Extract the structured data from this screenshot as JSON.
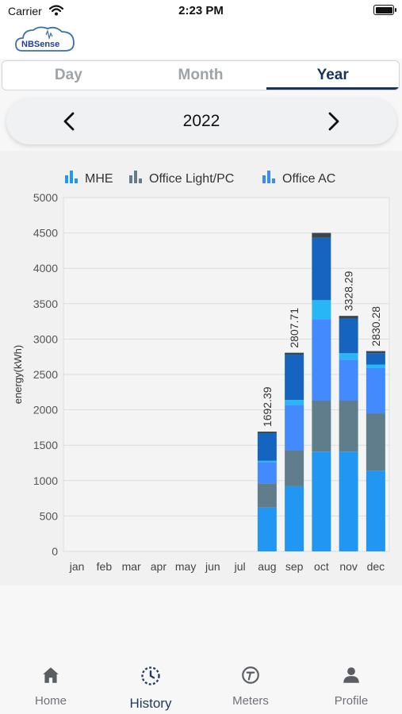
{
  "status_bar": {
    "carrier": "Carrier",
    "time": "2:23 PM"
  },
  "logo": {
    "text": "NBSense"
  },
  "tabs": [
    {
      "label": "Day"
    },
    {
      "label": "Month"
    },
    {
      "label": "Year",
      "active": true
    }
  ],
  "period": {
    "label": "2022"
  },
  "chart_data": {
    "type": "bar",
    "stacked": true,
    "ylabel": "energy(kWh)",
    "ylim": [
      0,
      5000
    ],
    "yticks": [
      0,
      500,
      1000,
      1500,
      2000,
      2500,
      3000,
      3500,
      4000,
      4500,
      5000
    ],
    "categories": [
      "jan",
      "feb",
      "mar",
      "apr",
      "may",
      "jun",
      "jul",
      "aug",
      "sep",
      "oct",
      "nov",
      "dec"
    ],
    "legend": [
      {
        "name": "MHE",
        "color": "#2196f3"
      },
      {
        "name": "Office Light/PC",
        "color": "#607d8b"
      },
      {
        "name": "Office AC",
        "color": "#3d8af7"
      }
    ],
    "segment_colors": [
      "#2196f3",
      "#607d8b",
      "#448aff",
      "#29b6f6",
      "#1565c0",
      "#37474f"
    ],
    "stacks": [
      [],
      [],
      [],
      [],
      [],
      [],
      [],
      [
        620,
        340,
        300,
        20,
        390,
        22
      ],
      [
        920,
        510,
        640,
        70,
        640,
        27
      ],
      [
        1410,
        720,
        1150,
        270,
        880,
        70
      ],
      [
        1410,
        720,
        580,
        90,
        490,
        38
      ],
      [
        1140,
        810,
        640,
        50,
        160,
        30
      ]
    ],
    "data_labels": [
      "",
      "",
      "",
      "",
      "",
      "",
      "",
      "1692.39",
      "2807.71",
      "",
      "3328.29",
      "2830.28"
    ]
  },
  "bottom_nav": [
    {
      "label": "Home",
      "icon": "home-icon"
    },
    {
      "label": "History",
      "icon": "history-icon",
      "active": true
    },
    {
      "label": "Meters",
      "icon": "meter-icon"
    },
    {
      "label": "Profile",
      "icon": "profile-icon"
    }
  ]
}
